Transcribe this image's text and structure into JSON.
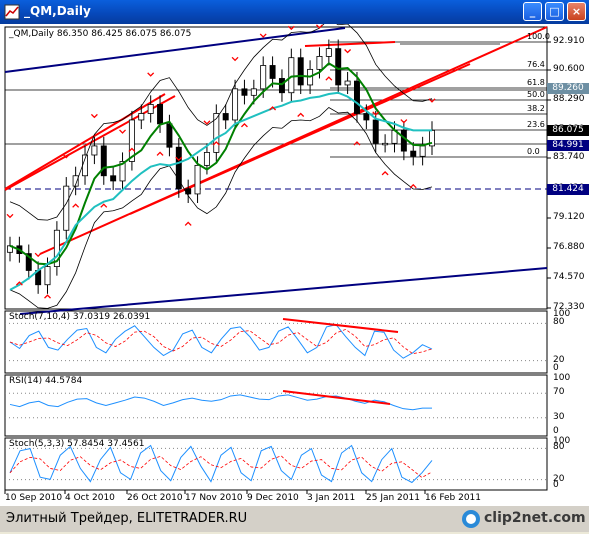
{
  "window": {
    "title": "_QM,Daily"
  },
  "header": {
    "line": "_QM,Daily  86.350 86.425 86.075 86.075"
  },
  "price_axis": {
    "ticks": [
      "92.910",
      "90.600",
      "88.290",
      "85.980",
      "83.740",
      "81.430",
      "79.120",
      "76.880",
      "74.570",
      "72.330"
    ],
    "labels": [
      {
        "text": "89.260",
        "bg": "#6d8fa3",
        "fg": "#ffffff"
      },
      {
        "text": "86.075",
        "bg": "#000000",
        "fg": "#ffffff"
      },
      {
        "text": "84.991",
        "bg": "#000080",
        "fg": "#ffffff"
      },
      {
        "text": "81.424",
        "bg": "#000080",
        "fg": "#ffffff"
      }
    ]
  },
  "fib_levels": [
    "100.0",
    "76.4",
    "61.8",
    "50.0",
    "38.2",
    "23.6",
    "0.0"
  ],
  "indicators": [
    {
      "title": "Stoch(7,10,4) 37.0319 26.0391",
      "ticks": [
        "100",
        "80",
        "20",
        "0"
      ]
    },
    {
      "title": "RSI(14) 44.5784",
      "ticks": [
        "100",
        "70",
        "30",
        "0"
      ]
    },
    {
      "title": "Stoch(5,3,3) 57.8454 37.4561",
      "ticks": [
        "100",
        "80",
        "20",
        "0"
      ]
    }
  ],
  "time_axis": [
    "10 Sep 2010",
    "4 Oct 2010",
    "26 Oct 2010",
    "17 Nov 2010",
    "9 Dec 2010",
    "3 Jan 2011",
    "25 Jan 2011",
    "16 Feb 2011"
  ],
  "footer": {
    "text": "Элитный Трейдер, ELITETRADER.RU",
    "logo": "clip2net.com"
  },
  "colors": {
    "candle": "#000000",
    "bollinger": "#000000",
    "sma_green": "#008000",
    "sma_cyan": "#20c0c0",
    "channel": "#ff0000",
    "trend": "#000080",
    "fractal": "#ff0000"
  },
  "chart_data": [
    {
      "type": "line",
      "title": "_QM,Daily",
      "y_axis_range": [
        72.33,
        93.6
      ],
      "series": [
        {
          "name": "",
          "values": [
            77.2,
            76.6,
            75.3,
            74.2,
            75.6,
            78.4,
            81.8,
            82.6,
            84.2,
            84.9,
            82.6,
            82.2,
            83.7,
            86.9,
            87.4,
            88.1,
            86.6,
            84.8,
            81.6,
            81.2,
            83.4,
            84.4,
            87.4,
            86.9,
            89.3,
            88.8,
            89.3,
            91.1,
            90.1,
            89.0,
            91.7,
            89.6,
            90.8,
            91.8,
            92.4,
            89.6,
            89.9,
            87.4,
            86.9,
            85.1,
            85.1,
            86.1,
            84.5,
            84.1,
            84.9,
            86.1
          ]
        },
        {
          "name": "",
          "values": [
            73.8,
            74.2,
            74.7,
            75.3,
            75.8,
            76.4,
            77.5,
            78.8,
            79.5,
            80.2,
            80.6,
            80.8,
            81.5,
            82.2,
            82.8,
            83.3,
            83.5,
            83.4,
            83.6,
            83.9,
            84.4,
            84.9,
            85.5,
            85.9,
            86.6,
            86.9,
            87.2,
            87.5,
            87.8,
            88.0,
            88.3,
            88.4,
            88.6,
            88.7,
            88.9,
            89.0,
            88.7,
            88.2,
            87.6,
            87.0,
            86.8,
            86.6,
            86.3,
            86.1,
            86.1,
            86.1
          ]
        }
      ]
    },
    {
      "type": "line",
      "title": "Stoch(7,10,4) 37.0319 26.0391",
      "y_axis_range": [
        0,
        100
      ],
      "series": [
        {
          "name": "",
          "values": [
            50,
            38,
            62,
            70,
            40,
            35,
            55,
            72,
            75,
            40,
            30,
            55,
            70,
            80,
            60,
            40,
            25,
            35,
            65,
            72,
            40,
            30,
            55,
            75,
            78,
            60,
            35,
            40,
            70,
            78,
            55,
            30,
            40,
            78,
            82,
            60,
            40,
            25,
            70,
            68,
            35,
            20,
            30,
            45,
            37
          ]
        }
      ]
    },
    {
      "type": "line",
      "title": "RSI(14) 44.5784",
      "y_axis_range": [
        0,
        100
      ],
      "series": [
        {
          "name": "",
          "values": [
            52,
            48,
            55,
            58,
            50,
            48,
            56,
            62,
            63,
            55,
            50,
            55,
            60,
            66,
            64,
            58,
            50,
            55,
            61,
            64,
            60,
            58,
            61,
            68,
            70,
            66,
            62,
            61,
            68,
            70,
            65,
            60,
            62,
            67,
            68,
            64,
            58,
            54,
            60,
            57,
            50,
            44,
            42,
            45,
            45
          ]
        }
      ]
    },
    {
      "type": "line",
      "title": "Stoch(5,3,3) 57.8454 37.4561",
      "y_axis_range": [
        0,
        100
      ],
      "series": [
        {
          "name": "",
          "values": [
            30,
            80,
            85,
            20,
            15,
            70,
            90,
            40,
            10,
            60,
            88,
            30,
            15,
            75,
            92,
            35,
            12,
            65,
            90,
            45,
            10,
            70,
            88,
            30,
            12,
            80,
            90,
            35,
            15,
            70,
            85,
            25,
            10,
            75,
            92,
            30,
            10,
            60,
            85,
            20,
            8,
            30,
            58
          ]
        }
      ]
    }
  ]
}
